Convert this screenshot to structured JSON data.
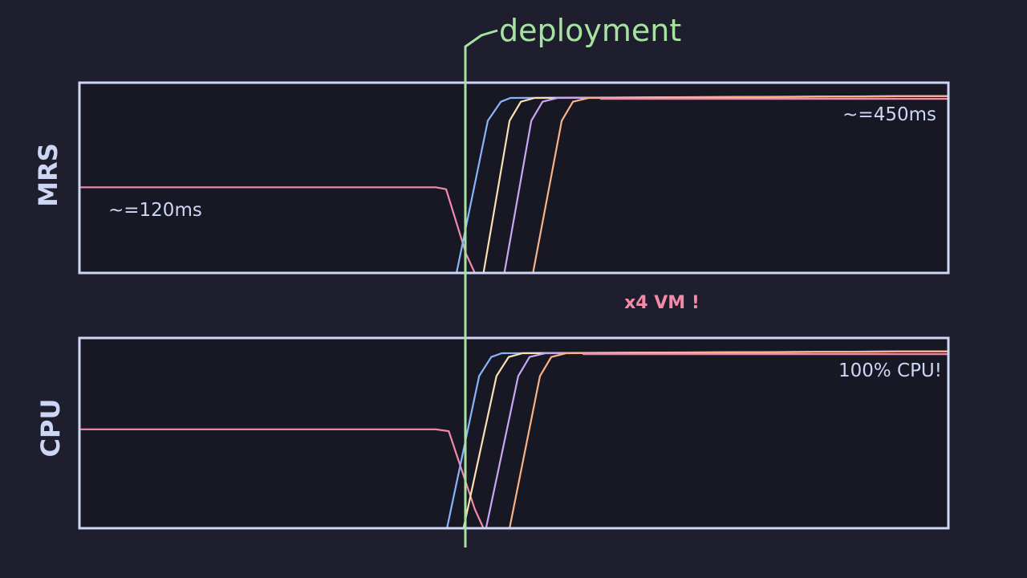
{
  "colors": {
    "background": "#1e1e2e",
    "panel": "#181825",
    "frame": "#cdd6f4",
    "text": "#cdd6f4",
    "deployment": "#a6e3a1",
    "accent": "#f38ba8"
  },
  "deployment_label": "deployment",
  "middle_note": "x4 VM !",
  "chart_data": [
    {
      "type": "line",
      "ylabel": "MRS",
      "annotations": {
        "before": "~=120ms",
        "after": "~=450ms"
      },
      "series": [
        {
          "color": "#f38ba8",
          "role": "old",
          "x": [
            0,
            41,
            42.2,
            44.5,
            45.5
          ],
          "y": [
            45,
            45,
            44,
            10,
            0
          ]
        },
        {
          "color": "#89b4fa",
          "x": [
            43.4,
            47,
            48.5,
            49.6,
            100
          ],
          "y": [
            0,
            80,
            90,
            92,
            93
          ]
        },
        {
          "color": "#f9e2af",
          "x": [
            46.5,
            49.5,
            50.8,
            52.4,
            100
          ],
          "y": [
            0,
            80,
            90,
            92,
            93
          ]
        },
        {
          "color": "#cba6f7",
          "x": [
            48.9,
            52,
            53.3,
            55,
            100
          ],
          "y": [
            0,
            80,
            90,
            92,
            93
          ]
        },
        {
          "color": "#fab387",
          "x": [
            52.2,
            55.5,
            56.8,
            58.6,
            100
          ],
          "y": [
            0,
            80,
            90,
            92,
            93
          ]
        },
        {
          "color": "#f38ba8",
          "role": "final",
          "x": [
            60,
            100
          ],
          "y": [
            91.5,
            91.5
          ]
        }
      ]
    },
    {
      "type": "line",
      "ylabel": "CPU",
      "annotations": {
        "after": "100% CPU!"
      },
      "series": [
        {
          "color": "#f38ba8",
          "role": "old",
          "x": [
            0,
            41,
            42.5,
            45.5,
            46.5
          ],
          "y": [
            52,
            52,
            51,
            10,
            0
          ]
        },
        {
          "color": "#89b4fa",
          "x": [
            42.3,
            46,
            47.4,
            48.6,
            100
          ],
          "y": [
            0,
            80,
            90,
            92,
            93
          ]
        },
        {
          "color": "#f9e2af",
          "x": [
            44.2,
            48,
            49.4,
            51,
            100
          ],
          "y": [
            0,
            80,
            90,
            92,
            93
          ]
        },
        {
          "color": "#cba6f7",
          "x": [
            46.8,
            50.5,
            51.8,
            53.6,
            100
          ],
          "y": [
            0,
            80,
            90,
            92,
            93
          ]
        },
        {
          "color": "#fab387",
          "x": [
            49.5,
            53,
            54.3,
            56,
            100
          ],
          "y": [
            0,
            80,
            90,
            92,
            93
          ]
        },
        {
          "color": "#f38ba8",
          "role": "final",
          "x": [
            58,
            100
          ],
          "y": [
            91.5,
            91.5
          ]
        }
      ]
    }
  ]
}
